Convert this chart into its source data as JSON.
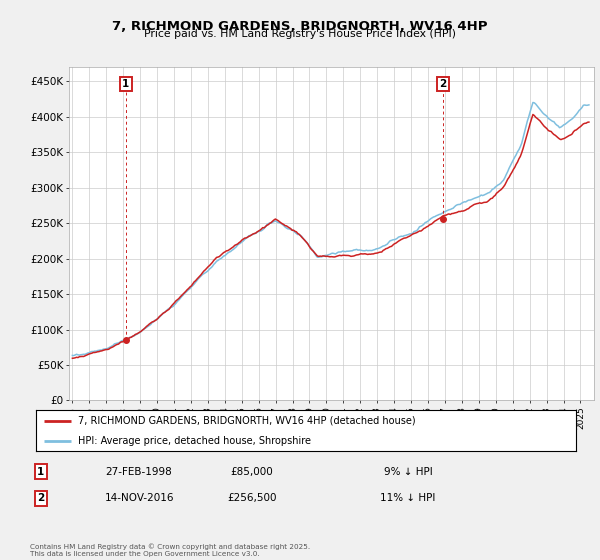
{
  "title": "7, RICHMOND GARDENS, BRIDGNORTH, WV16 4HP",
  "subtitle": "Price paid vs. HM Land Registry's House Price Index (HPI)",
  "legend_line1": "7, RICHMOND GARDENS, BRIDGNORTH, WV16 4HP (detached house)",
  "legend_line2": "HPI: Average price, detached house, Shropshire",
  "annotation1_label": "1",
  "annotation1_date": "27-FEB-1998",
  "annotation1_price": "£85,000",
  "annotation1_hpi": "9% ↓ HPI",
  "annotation2_label": "2",
  "annotation2_date": "14-NOV-2016",
  "annotation2_price": "£256,500",
  "annotation2_hpi": "11% ↓ HPI",
  "footnote": "Contains HM Land Registry data © Crown copyright and database right 2025.\nThis data is licensed under the Open Government Licence v3.0.",
  "sale1_year": 1998.15,
  "sale1_price": 85000,
  "sale2_year": 2016.87,
  "sale2_price": 256500,
  "hpi_color": "#7fbfdf",
  "price_color": "#cc2222",
  "background_color": "#f0f0f0",
  "plot_bg_color": "#ffffff",
  "grid_color": "#cccccc",
  "ylim": [
    0,
    470000
  ],
  "xlim_start": 1994.8,
  "xlim_end": 2025.8,
  "ytick_vals": [
    0,
    50000,
    100000,
    150000,
    200000,
    250000,
    300000,
    350000,
    400000,
    450000
  ],
  "ytick_labels": [
    "£0",
    "£50K",
    "£100K",
    "£150K",
    "£200K",
    "£250K",
    "£300K",
    "£350K",
    "£400K",
    "£450K"
  ],
  "xticks": [
    1995,
    1996,
    1997,
    1998,
    1999,
    2000,
    2001,
    2002,
    2003,
    2004,
    2005,
    2006,
    2007,
    2008,
    2009,
    2010,
    2011,
    2012,
    2013,
    2014,
    2015,
    2016,
    2017,
    2018,
    2019,
    2020,
    2021,
    2022,
    2023,
    2024,
    2025
  ]
}
